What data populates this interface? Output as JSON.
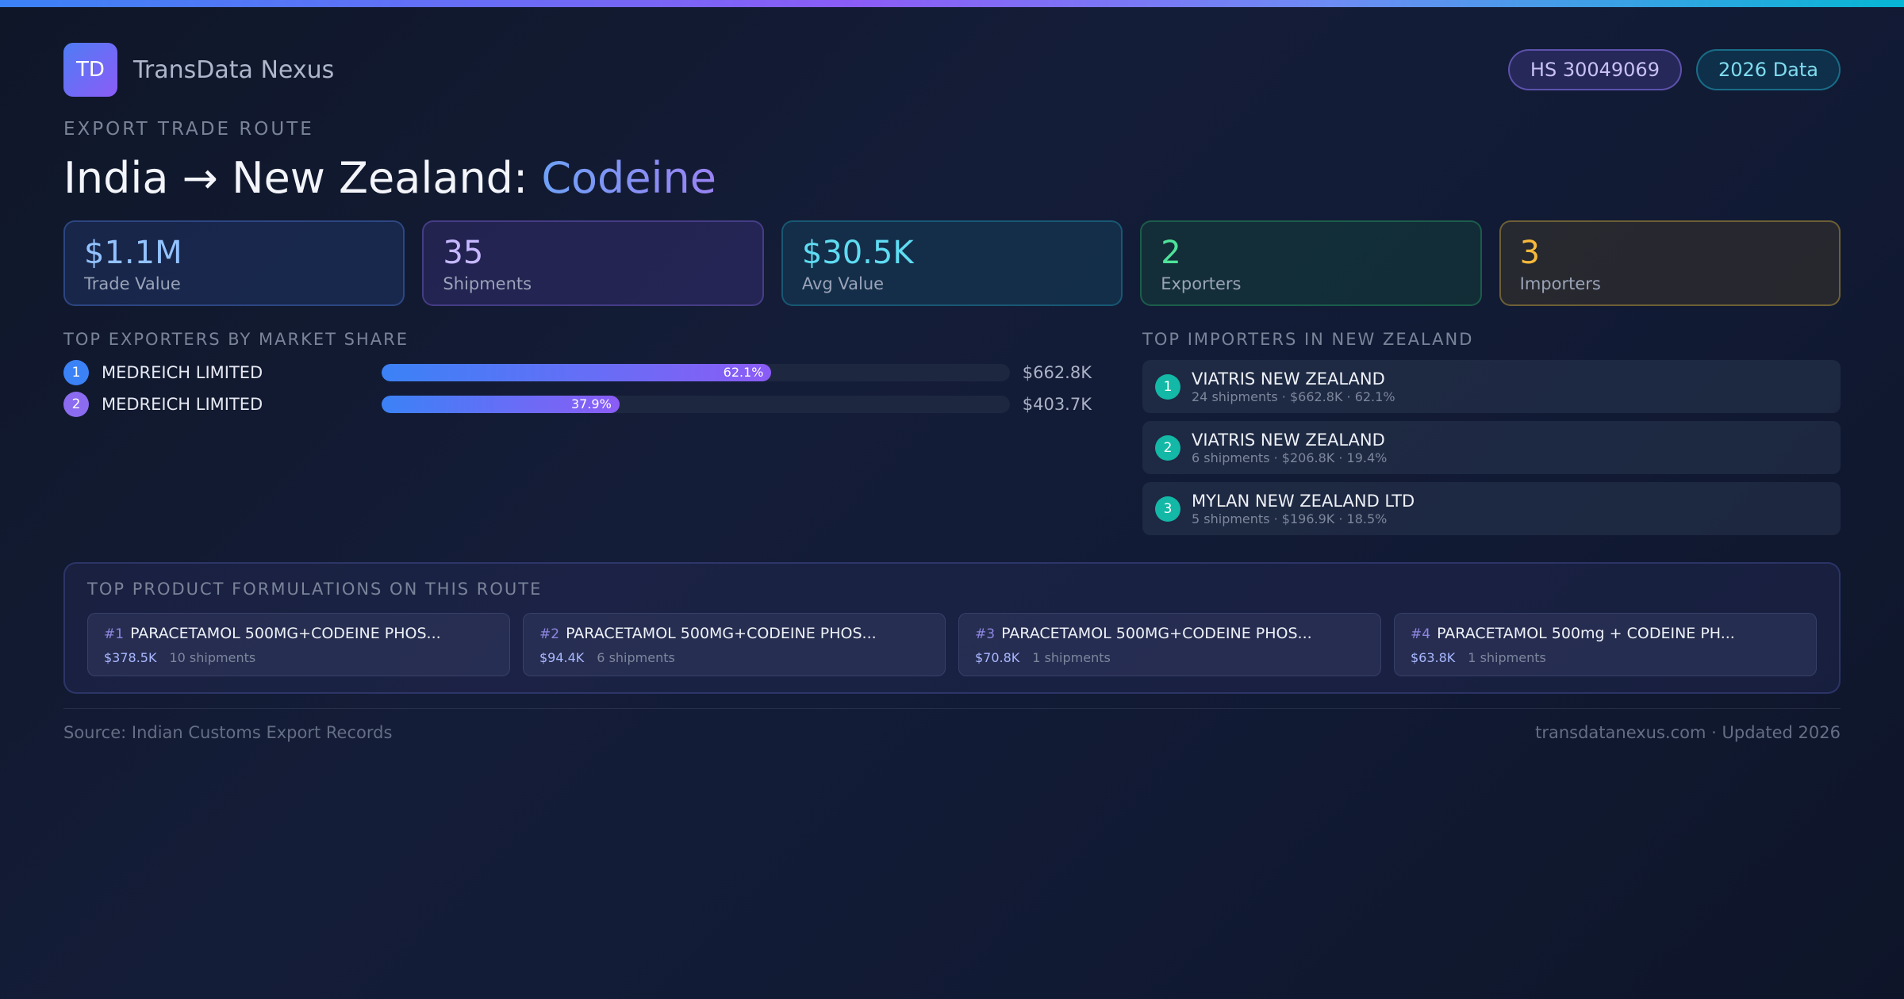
{
  "brand": {
    "logo_text": "TD",
    "name": "TransData Nexus"
  },
  "badges": {
    "hs_code": "HS 30049069",
    "year": "2026 Data"
  },
  "eyebrow": "EXPORT TRADE ROUTE",
  "title": {
    "route": "India → New Zealand: ",
    "product": "Codeine"
  },
  "stats": [
    {
      "value": "$1.1M",
      "label": "Trade Value"
    },
    {
      "value": "35",
      "label": "Shipments"
    },
    {
      "value": "$30.5K",
      "label": "Avg Value"
    },
    {
      "value": "2",
      "label": "Exporters"
    },
    {
      "value": "3",
      "label": "Importers"
    }
  ],
  "exporters": {
    "title": "TOP EXPORTERS BY MARKET SHARE",
    "items": [
      {
        "rank": "1",
        "name": "MEDREICH LIMITED",
        "share": 62.1,
        "share_label": "62.1%",
        "value": "$662.8K"
      },
      {
        "rank": "2",
        "name": "MEDREICH LIMITED",
        "share": 37.9,
        "share_label": "37.9%",
        "value": "$403.7K"
      }
    ]
  },
  "importers": {
    "title": "TOP IMPORTERS IN NEW ZEALAND",
    "items": [
      {
        "rank": "1",
        "name": "VIATRIS NEW ZEALAND",
        "meta": "24 shipments · $662.8K · 62.1%"
      },
      {
        "rank": "2",
        "name": "VIATRIS NEW ZEALAND",
        "meta": "6 shipments · $206.8K · 19.4%"
      },
      {
        "rank": "3",
        "name": "MYLAN NEW ZEALAND LTD",
        "meta": "5 shipments · $196.9K · 18.5%"
      }
    ]
  },
  "products": {
    "title": "TOP PRODUCT FORMULATIONS ON THIS ROUTE",
    "items": [
      {
        "num": "#1",
        "name": "PARACETAMOL 500MG+CODEINE PHOS...",
        "value": "$378.5K",
        "shipments": "10 shipments"
      },
      {
        "num": "#2",
        "name": "PARACETAMOL 500MG+CODEINE PHOS...",
        "value": "$94.4K",
        "shipments": "6 shipments"
      },
      {
        "num": "#3",
        "name": "PARACETAMOL 500MG+CODEINE PHOS...",
        "value": "$70.8K",
        "shipments": "1 shipments"
      },
      {
        "num": "#4",
        "name": "PARACETAMOL 500mg + CODEINE PH...",
        "value": "$63.8K",
        "shipments": "1 shipments"
      }
    ]
  },
  "footer": {
    "source": "Source: Indian Customs Export Records",
    "site": "transdatanexus.com · Updated 2026"
  }
}
